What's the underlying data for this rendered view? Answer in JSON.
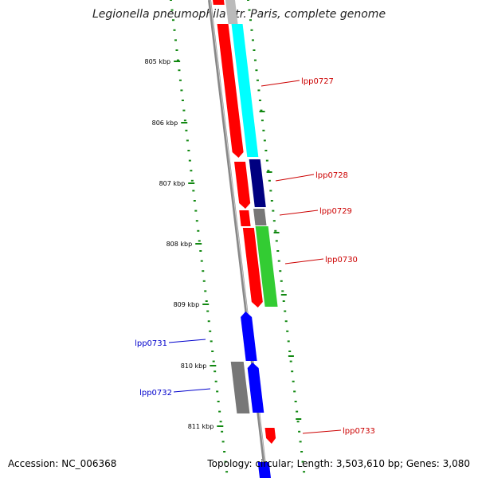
{
  "title": "Legionella pneumophila str. Paris, complete genome",
  "footer": {
    "accession": "Accession: NC_006368",
    "stats": "Topology: circular; Length: 3,503,610 bp; Genes: 3,080"
  },
  "colors": {
    "backbone": "#888888",
    "tick": "#118811",
    "label_red": "#cc0000",
    "label_blue": "#0000cc",
    "red": "#ff0000",
    "cyan": "#00ffff",
    "navy": "#000080",
    "gray": "#777777",
    "green": "#33cc33",
    "blue": "#0000ff"
  },
  "axis": {
    "kbp_labels": [
      "805 kbp",
      "806 kbp",
      "807 kbp",
      "808 kbp",
      "809 kbp",
      "810 kbp",
      "811 kbp"
    ]
  },
  "genes": [
    {
      "label": "lpp0727",
      "side": "right",
      "color": "red"
    },
    {
      "label": "lpp0728",
      "side": "right",
      "color": "red"
    },
    {
      "label": "lpp0729",
      "side": "right",
      "color": "red"
    },
    {
      "label": "lpp0730",
      "side": "right",
      "color": "red"
    },
    {
      "label": "lpp0731",
      "side": "left",
      "color": "blue"
    },
    {
      "label": "lpp0732",
      "side": "left",
      "color": "blue"
    },
    {
      "label": "lpp0733",
      "side": "right",
      "color": "red"
    }
  ]
}
